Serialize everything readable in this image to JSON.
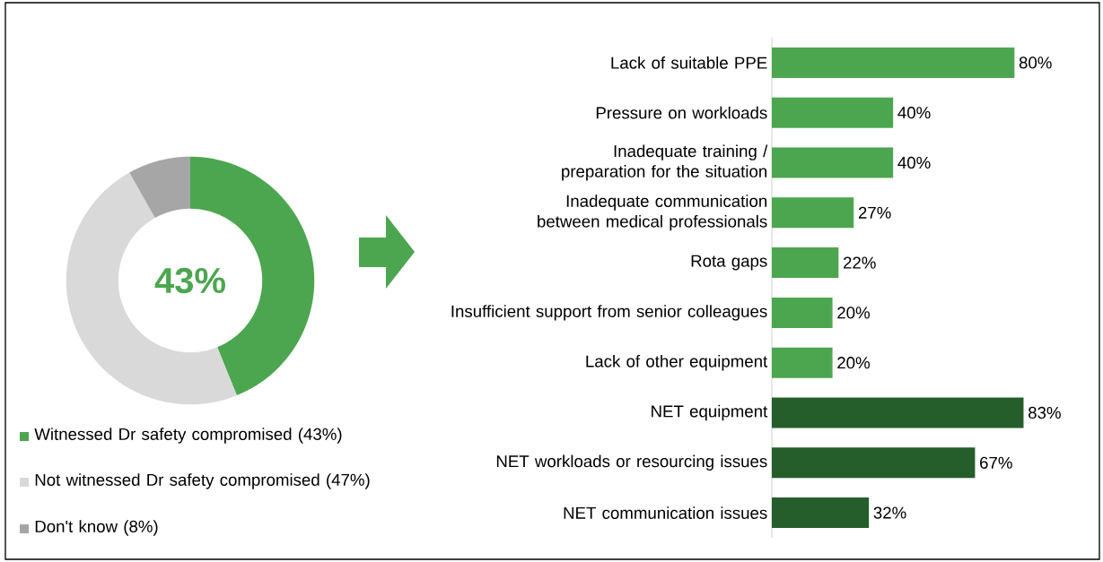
{
  "chart_data": [
    {
      "type": "donut",
      "categories": [
        "Witnessed Dr safety compromised (43%)",
        "Not witnessed Dr safety compromised (47%)",
        "Don't know (8%)"
      ],
      "values": [
        43,
        47,
        8
      ],
      "colors": [
        "#4ca64f",
        "#d9d9d9",
        "#a6a6a6"
      ],
      "annotations": [
        "43%"
      ],
      "legend": "bottom"
    },
    {
      "type": "bar",
      "orientation": "horizontal",
      "categories": [
        "Lack of suitable PPE",
        "Pressure on workloads",
        "Inadequate training / preparation for the situation",
        "Inadequate communication between medical professionals",
        "Rota gaps",
        "Insufficient support from senior colleagues",
        "Lack of other equipment",
        "NET equipment",
        "NET workloads or resourcing issues",
        "NET communication issues"
      ],
      "values": [
        80,
        40,
        40,
        27,
        22,
        20,
        20,
        83,
        67,
        32
      ],
      "colors": [
        "#4ca64f",
        "#4ca64f",
        "#4ca64f",
        "#4ca64f",
        "#4ca64f",
        "#4ca64f",
        "#4ca64f",
        "#255d2b",
        "#255d2b",
        "#255d2b"
      ],
      "value_labels": [
        "80%",
        "40%",
        "40%",
        "27%",
        "22%",
        "20%",
        "20%",
        "83%",
        "67%",
        "32%"
      ]
    }
  ]
}
